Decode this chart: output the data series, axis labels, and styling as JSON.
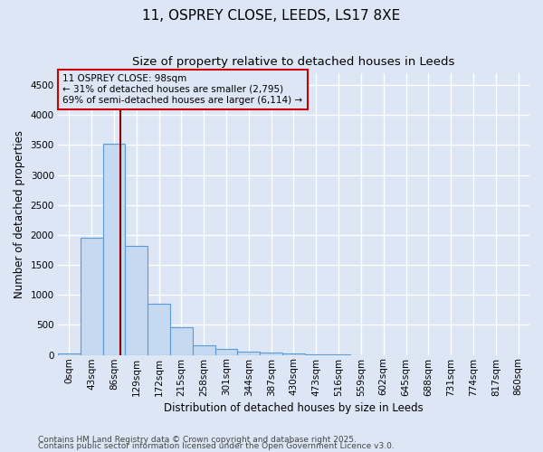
{
  "title": "11, OSPREY CLOSE, LEEDS, LS17 8XE",
  "subtitle": "Size of property relative to detached houses in Leeds",
  "xlabel": "Distribution of detached houses by size in Leeds",
  "ylabel": "Number of detached properties",
  "footnote1": "Contains HM Land Registry data © Crown copyright and database right 2025.",
  "footnote2": "Contains public sector information licensed under the Open Government Licence v3.0.",
  "bin_labels": [
    "0sqm",
    "43sqm",
    "86sqm",
    "129sqm",
    "172sqm",
    "215sqm",
    "258sqm",
    "301sqm",
    "344sqm",
    "387sqm",
    "430sqm",
    "473sqm",
    "516sqm",
    "559sqm",
    "602sqm",
    "645sqm",
    "688sqm",
    "731sqm",
    "774sqm",
    "817sqm",
    "860sqm"
  ],
  "bar_values": [
    30,
    1950,
    3520,
    1820,
    855,
    455,
    165,
    100,
    60,
    40,
    25,
    15,
    5,
    2,
    1,
    1,
    0,
    0,
    0,
    0,
    0
  ],
  "bar_color": "#c5d9f0",
  "bar_edgecolor": "#5b9bd5",
  "bar_linewidth": 0.8,
  "vline_x": 2.27,
  "vline_color": "#8b0000",
  "annotation_text": "11 OSPREY CLOSE: 98sqm\n← 31% of detached houses are smaller (2,795)\n69% of semi-detached houses are larger (6,114) →",
  "annotation_box_color": "#cc0000",
  "ylim": [
    0,
    4700
  ],
  "yticks": [
    0,
    500,
    1000,
    1500,
    2000,
    2500,
    3000,
    3500,
    4000,
    4500
  ],
  "background_color": "#dce6f5",
  "plot_bg_color": "#dce6f5",
  "grid_color": "#ffffff",
  "title_fontsize": 11,
  "subtitle_fontsize": 9.5,
  "label_fontsize": 8.5,
  "tick_fontsize": 7.5,
  "annotation_fontsize": 7.5,
  "footnote_fontsize": 6.5
}
